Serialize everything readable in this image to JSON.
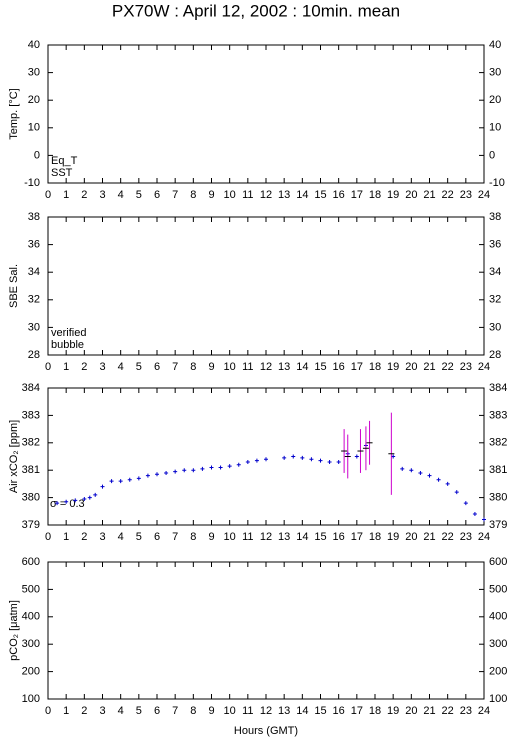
{
  "title": "PX70W : April 12, 2002 : 10min. mean",
  "x_label": "Hours (GMT)",
  "chart_data": [
    {
      "type": "scatter",
      "y_label": "Temp. [°C]",
      "xlim": [
        0,
        24
      ],
      "xticks": [
        0,
        1,
        2,
        3,
        4,
        5,
        6,
        7,
        8,
        9,
        10,
        11,
        12,
        13,
        14,
        15,
        16,
        17,
        18,
        19,
        20,
        21,
        22,
        23,
        24
      ],
      "ylim": [
        -10,
        40
      ],
      "yticks": [
        -10,
        0,
        10,
        20,
        30,
        40
      ],
      "legend": [
        {
          "text": "Eq_T",
          "color": "#cc0000"
        },
        {
          "text": "SST",
          "color": "#0000cc"
        }
      ],
      "series": []
    },
    {
      "type": "scatter",
      "y_label": "SBE Sal.",
      "xlim": [
        0,
        24
      ],
      "xticks": [
        0,
        1,
        2,
        3,
        4,
        5,
        6,
        7,
        8,
        9,
        10,
        11,
        12,
        13,
        14,
        15,
        16,
        17,
        18,
        19,
        20,
        21,
        22,
        23,
        24
      ],
      "ylim": [
        28,
        38
      ],
      "yticks": [
        28,
        30,
        32,
        34,
        36,
        38
      ],
      "legend": [
        {
          "text": "verified",
          "color": "#0000cc"
        },
        {
          "text": "bubble",
          "color": "#cc00cc"
        }
      ],
      "series": []
    },
    {
      "type": "scatter",
      "y_label": "Air xCO₂ [ppm]",
      "xlim": [
        0,
        24
      ],
      "xticks": [
        0,
        1,
        2,
        3,
        4,
        5,
        6,
        7,
        8,
        9,
        10,
        11,
        12,
        13,
        14,
        15,
        16,
        17,
        18,
        19,
        20,
        21,
        22,
        23,
        24
      ],
      "ylim": [
        379,
        384
      ],
      "yticks": [
        379,
        380,
        381,
        382,
        383,
        384
      ],
      "annotation": "σ = 0.3",
      "annotation_color": "#cc00cc",
      "series": [
        {
          "color": "#0000cc",
          "x": [
            0.5,
            1,
            1.5,
            2,
            2.3,
            2.6,
            3,
            3.5,
            4,
            4.5,
            5,
            5.5,
            6,
            6.5,
            7,
            7.5,
            8,
            8.5,
            9,
            9.5,
            10,
            10.5,
            11,
            11.5,
            12,
            13,
            13.5,
            14,
            14.5,
            15,
            15.5,
            16,
            16.5,
            17,
            17.5,
            19,
            19.5,
            20,
            20.5,
            21,
            21.5,
            22,
            22.5,
            23,
            23.5,
            24
          ],
          "values": [
            379.8,
            379.85,
            379.9,
            379.95,
            380.0,
            380.1,
            380.4,
            380.6,
            380.6,
            380.65,
            380.7,
            380.8,
            380.85,
            380.9,
            380.95,
            381.0,
            381.0,
            381.05,
            381.1,
            381.1,
            381.15,
            381.2,
            381.3,
            381.35,
            381.4,
            381.45,
            381.5,
            381.45,
            381.4,
            381.35,
            381.3,
            381.3,
            381.6,
            381.5,
            381.9,
            381.5,
            381.05,
            381.0,
            380.9,
            380.8,
            380.65,
            380.5,
            380.2,
            379.8,
            379.4,
            379.2
          ]
        },
        {
          "color": "#cc00cc",
          "x": [
            16.3,
            16.5,
            17.2,
            17.5,
            17.7,
            18.9
          ],
          "values": [
            381.7,
            381.5,
            381.7,
            381.8,
            382.0,
            381.6
          ],
          "errors": [
            0.8,
            0.8,
            0.8,
            0.8,
            0.8,
            1.5
          ]
        }
      ]
    },
    {
      "type": "scatter",
      "y_label": "pCO₂ [μatm]",
      "xlim": [
        0,
        24
      ],
      "xticks": [
        0,
        1,
        2,
        3,
        4,
        5,
        6,
        7,
        8,
        9,
        10,
        11,
        12,
        13,
        14,
        15,
        16,
        17,
        18,
        19,
        20,
        21,
        22,
        23,
        24
      ],
      "ylim": [
        100,
        600
      ],
      "yticks": [
        100,
        200,
        300,
        400,
        500,
        600
      ],
      "series": []
    }
  ]
}
